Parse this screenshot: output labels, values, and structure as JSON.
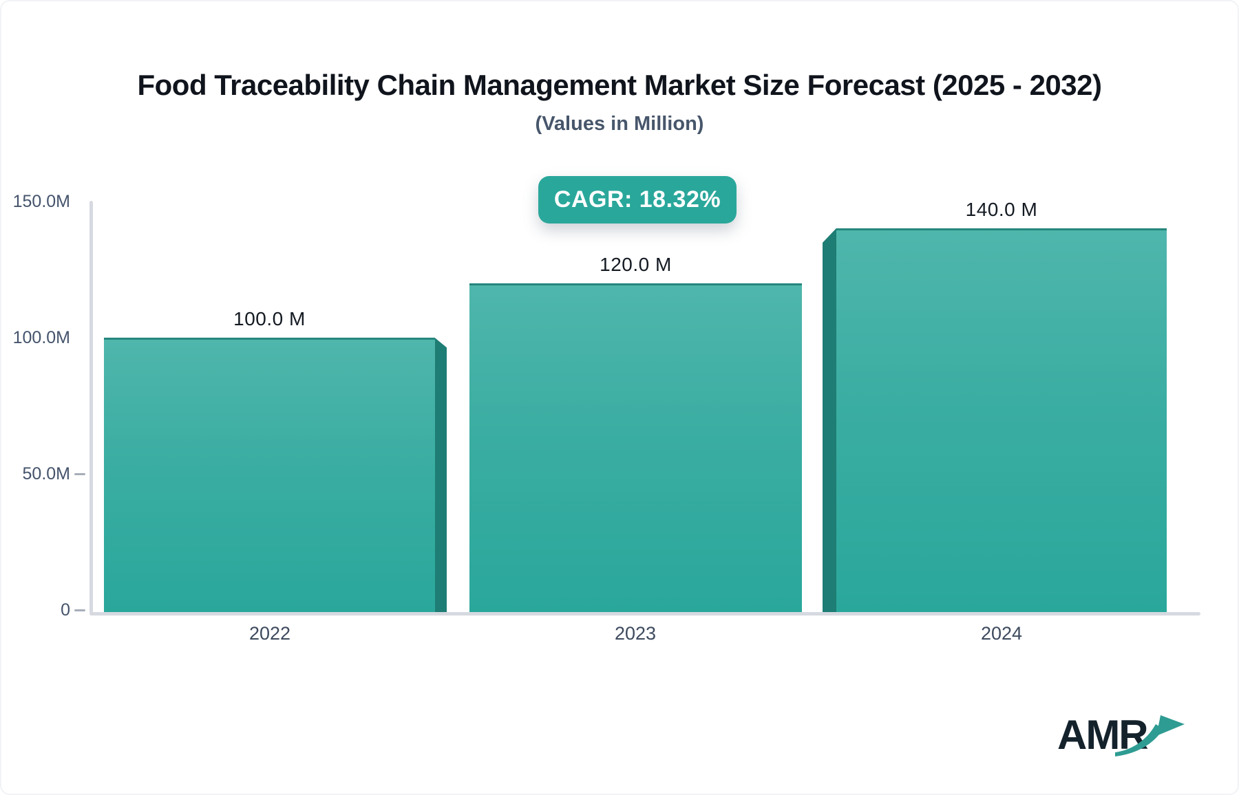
{
  "header": {
    "title": "Food Traceability Chain Management Market Size Forecast (2025 - 2032)",
    "subtitle": "(Values in Million)"
  },
  "cagr_badge": {
    "label": "CAGR: 18.32%",
    "bg_color": "#2AA79B",
    "text_color": "#FFFFFF"
  },
  "chart_data": {
    "type": "bar",
    "title": "Food Traceability Chain Management Market Size Forecast (2025 - 2032)",
    "subtitle": "(Values in Million)",
    "categories": [
      "2022",
      "2023",
      "2024"
    ],
    "values": [
      100.0,
      120.0,
      140.0
    ],
    "value_labels": [
      "100.0 M",
      "120.0 M",
      "140.0 M"
    ],
    "xlabel": "",
    "ylabel": "",
    "ylim": [
      0,
      150
    ],
    "ytick_labels": [
      "150.0M",
      "100.0M",
      "50.0M",
      "0"
    ],
    "ytick_values": [
      150,
      100,
      50,
      0
    ],
    "grid": false,
    "legend": false,
    "annotations": [
      {
        "text": "CAGR: 18.32%",
        "position": "top-center"
      }
    ],
    "bar_face_color_top": "#4FB6AC",
    "bar_face_color_bottom": "#2AA79B",
    "bar_side_color": "#1E7D74",
    "axis_color": "#D6DAE0",
    "tick_label_color": "#44536B"
  },
  "logo": {
    "text": "AMR",
    "text_color": "#14222C",
    "arrow_color": "#2E9C92"
  }
}
